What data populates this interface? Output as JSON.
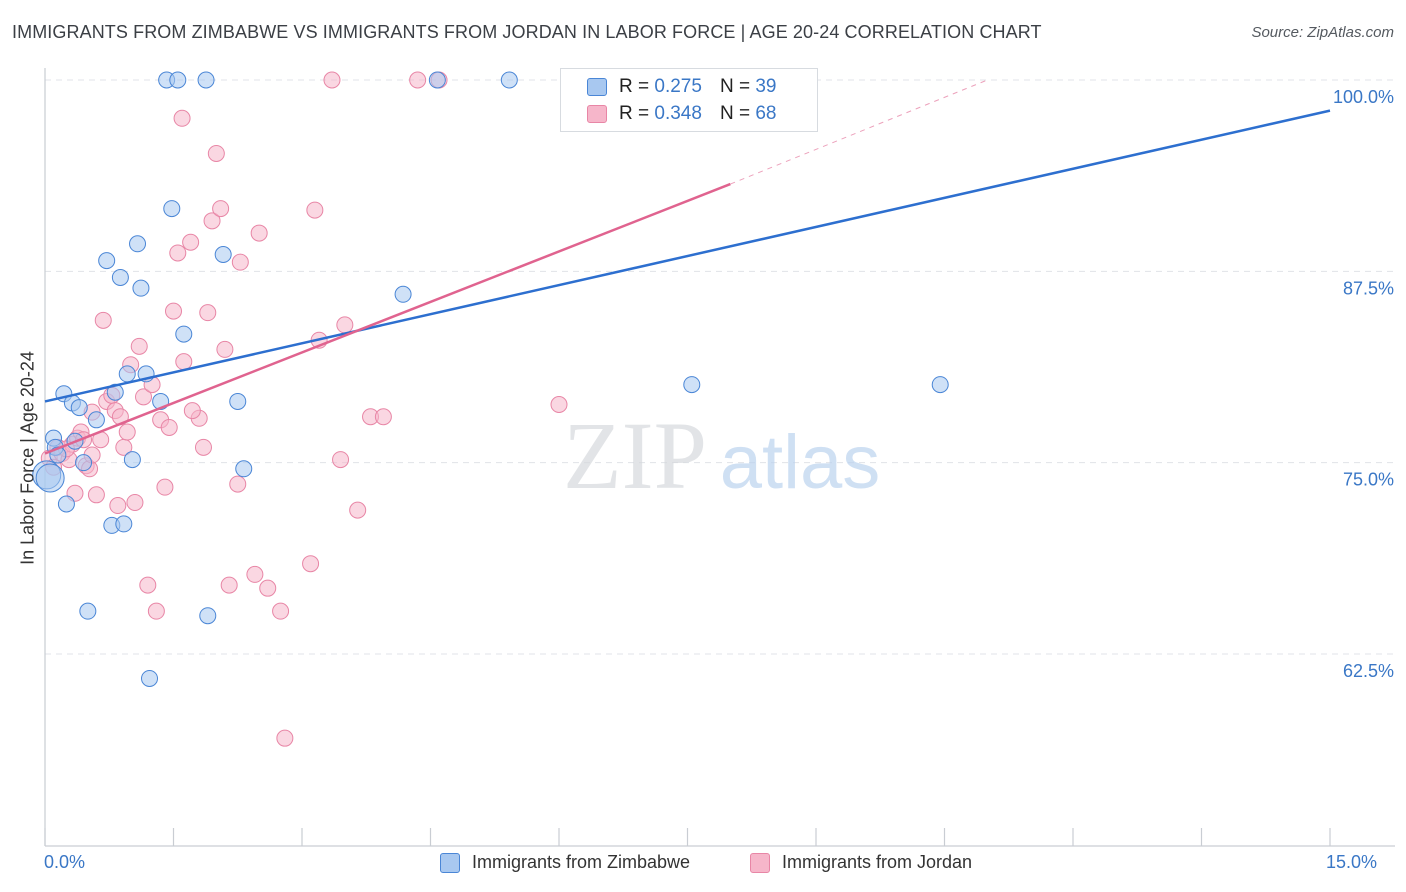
{
  "title": "IMMIGRANTS FROM ZIMBABWE VS IMMIGRANTS FROM JORDAN IN LABOR FORCE | AGE 20-24 CORRELATION CHART",
  "source": "Source: ZipAtlas.com",
  "watermark": "ZIPatlas",
  "legend": {
    "r_label": "R =",
    "n_label": "N =",
    "zimbabwe": {
      "r": "0.275",
      "n": "39"
    },
    "jordan": {
      "r": "0.348",
      "n": "68"
    }
  },
  "colors": {
    "zimbabwe_fill": "#a8c8f0",
    "zimbabwe_stroke": "#4a86d6",
    "zimbabwe_line": "#2d6fcf",
    "jordan_fill": "#f6b6ca",
    "jordan_stroke": "#e886a6",
    "jordan_line": "#e0638f",
    "axis_text": "#3a77c6",
    "grid": "#e0e3e8"
  },
  "chart_data": {
    "type": "scatter",
    "title": "IMMIGRANTS FROM ZIMBABWE VS IMMIGRANTS FROM JORDAN IN LABOR FORCE | AGE 20-24 CORRELATION CHART",
    "xlabel": "",
    "ylabel": "In Labor Force | Age 20-24",
    "xlim": [
      0,
      15
    ],
    "ylim": [
      52.5,
      102.5
    ],
    "x_tick_labels": [
      "0.0%",
      "15.0%"
    ],
    "y_ticks": [
      62.5,
      75.0,
      87.5,
      100.0
    ],
    "y_tick_labels": [
      "62.5%",
      "75.0%",
      "87.5%",
      "100.0%"
    ],
    "grid": true,
    "legend_position": "top-center",
    "series": [
      {
        "name": "Immigrants from Zimbabwe",
        "color": "#a8c8f0",
        "r": 0.275,
        "n": 39,
        "trend": {
          "x": [
            0.0,
            15.0
          ],
          "y": [
            79.0,
            98.0
          ]
        },
        "points": [
          [
            0.02,
            74.2
          ],
          [
            0.1,
            76.6
          ],
          [
            0.12,
            76.0
          ],
          [
            0.15,
            75.5
          ],
          [
            0.22,
            79.5
          ],
          [
            0.25,
            72.3
          ],
          [
            0.32,
            78.9
          ],
          [
            0.35,
            76.4
          ],
          [
            0.4,
            78.6
          ],
          [
            0.45,
            75.0
          ],
          [
            0.5,
            65.3
          ],
          [
            0.6,
            77.8
          ],
          [
            0.72,
            88.2
          ],
          [
            0.78,
            70.9
          ],
          [
            0.82,
            79.6
          ],
          [
            0.88,
            87.1
          ],
          [
            0.92,
            71.0
          ],
          [
            0.96,
            80.8
          ],
          [
            1.02,
            75.2
          ],
          [
            1.08,
            89.3
          ],
          [
            1.12,
            86.4
          ],
          [
            1.18,
            80.8
          ],
          [
            1.22,
            60.9
          ],
          [
            1.35,
            79.0
          ],
          [
            1.42,
            100.0
          ],
          [
            1.48,
            91.6
          ],
          [
            1.55,
            100.0
          ],
          [
            1.62,
            83.4
          ],
          [
            1.88,
            100.0
          ],
          [
            1.9,
            65.0
          ],
          [
            2.08,
            88.6
          ],
          [
            2.25,
            79.0
          ],
          [
            2.32,
            74.6
          ],
          [
            4.18,
            86.0
          ],
          [
            4.58,
            100.0
          ],
          [
            5.42,
            100.0
          ],
          [
            7.55,
            80.1
          ],
          [
            10.45,
            80.1
          ],
          [
            0.06,
            74.0
          ]
        ]
      },
      {
        "name": "Immigrants from Jordan",
        "color": "#f6b6ca",
        "r": 0.348,
        "n": 68,
        "trend": {
          "x": [
            0.0,
            8.0
          ],
          "y": [
            75.6,
            93.2
          ]
        },
        "trend_extension": {
          "x": [
            8.0,
            11.0
          ],
          "y": [
            93.2,
            100.0
          ]
        },
        "points": [
          [
            0.05,
            75.3
          ],
          [
            0.1,
            74.7
          ],
          [
            0.15,
            76.0
          ],
          [
            0.2,
            75.6
          ],
          [
            0.28,
            75.2
          ],
          [
            0.32,
            76.2
          ],
          [
            0.38,
            76.6
          ],
          [
            0.42,
            77.0
          ],
          [
            0.48,
            74.8
          ],
          [
            0.52,
            74.6
          ],
          [
            0.55,
            78.3
          ],
          [
            0.6,
            72.9
          ],
          [
            0.65,
            76.5
          ],
          [
            0.68,
            84.3
          ],
          [
            0.72,
            79.0
          ],
          [
            0.78,
            79.4
          ],
          [
            0.82,
            78.4
          ],
          [
            0.85,
            72.2
          ],
          [
            0.88,
            78.0
          ],
          [
            0.92,
            76.0
          ],
          [
            0.96,
            77.0
          ],
          [
            1.0,
            81.4
          ],
          [
            1.05,
            72.4
          ],
          [
            1.1,
            82.6
          ],
          [
            1.15,
            79.3
          ],
          [
            1.2,
            67.0
          ],
          [
            1.25,
            80.1
          ],
          [
            1.3,
            65.3
          ],
          [
            1.35,
            77.8
          ],
          [
            1.4,
            73.4
          ],
          [
            1.45,
            77.3
          ],
          [
            1.5,
            84.9
          ],
          [
            1.55,
            88.7
          ],
          [
            1.6,
            97.5
          ],
          [
            1.62,
            81.6
          ],
          [
            1.7,
            89.4
          ],
          [
            1.8,
            77.9
          ],
          [
            1.85,
            76.0
          ],
          [
            1.9,
            84.8
          ],
          [
            1.95,
            90.8
          ],
          [
            2.0,
            95.2
          ],
          [
            2.05,
            91.6
          ],
          [
            2.1,
            82.4
          ],
          [
            2.15,
            67.0
          ],
          [
            2.28,
            88.1
          ],
          [
            2.45,
            67.7
          ],
          [
            2.5,
            90.0
          ],
          [
            2.6,
            66.8
          ],
          [
            2.75,
            65.3
          ],
          [
            2.8,
            57.0
          ],
          [
            3.1,
            68.4
          ],
          [
            3.15,
            91.5
          ],
          [
            3.2,
            83.0
          ],
          [
            3.45,
            75.2
          ],
          [
            3.5,
            84.0
          ],
          [
            3.65,
            71.9
          ],
          [
            3.8,
            78.0
          ],
          [
            3.95,
            78.0
          ],
          [
            4.35,
            100.0
          ],
          [
            4.6,
            100.0
          ],
          [
            3.35,
            100.0
          ],
          [
            6.0,
            78.8
          ],
          [
            0.35,
            73.0
          ],
          [
            0.45,
            76.5
          ],
          [
            1.72,
            78.4
          ],
          [
            2.25,
            73.6
          ],
          [
            0.25,
            75.9
          ],
          [
            0.55,
            75.5
          ]
        ]
      }
    ]
  },
  "bottom_legend": {
    "zimbabwe": "Immigrants from Zimbabwe",
    "jordan": "Immigrants from Jordan"
  }
}
